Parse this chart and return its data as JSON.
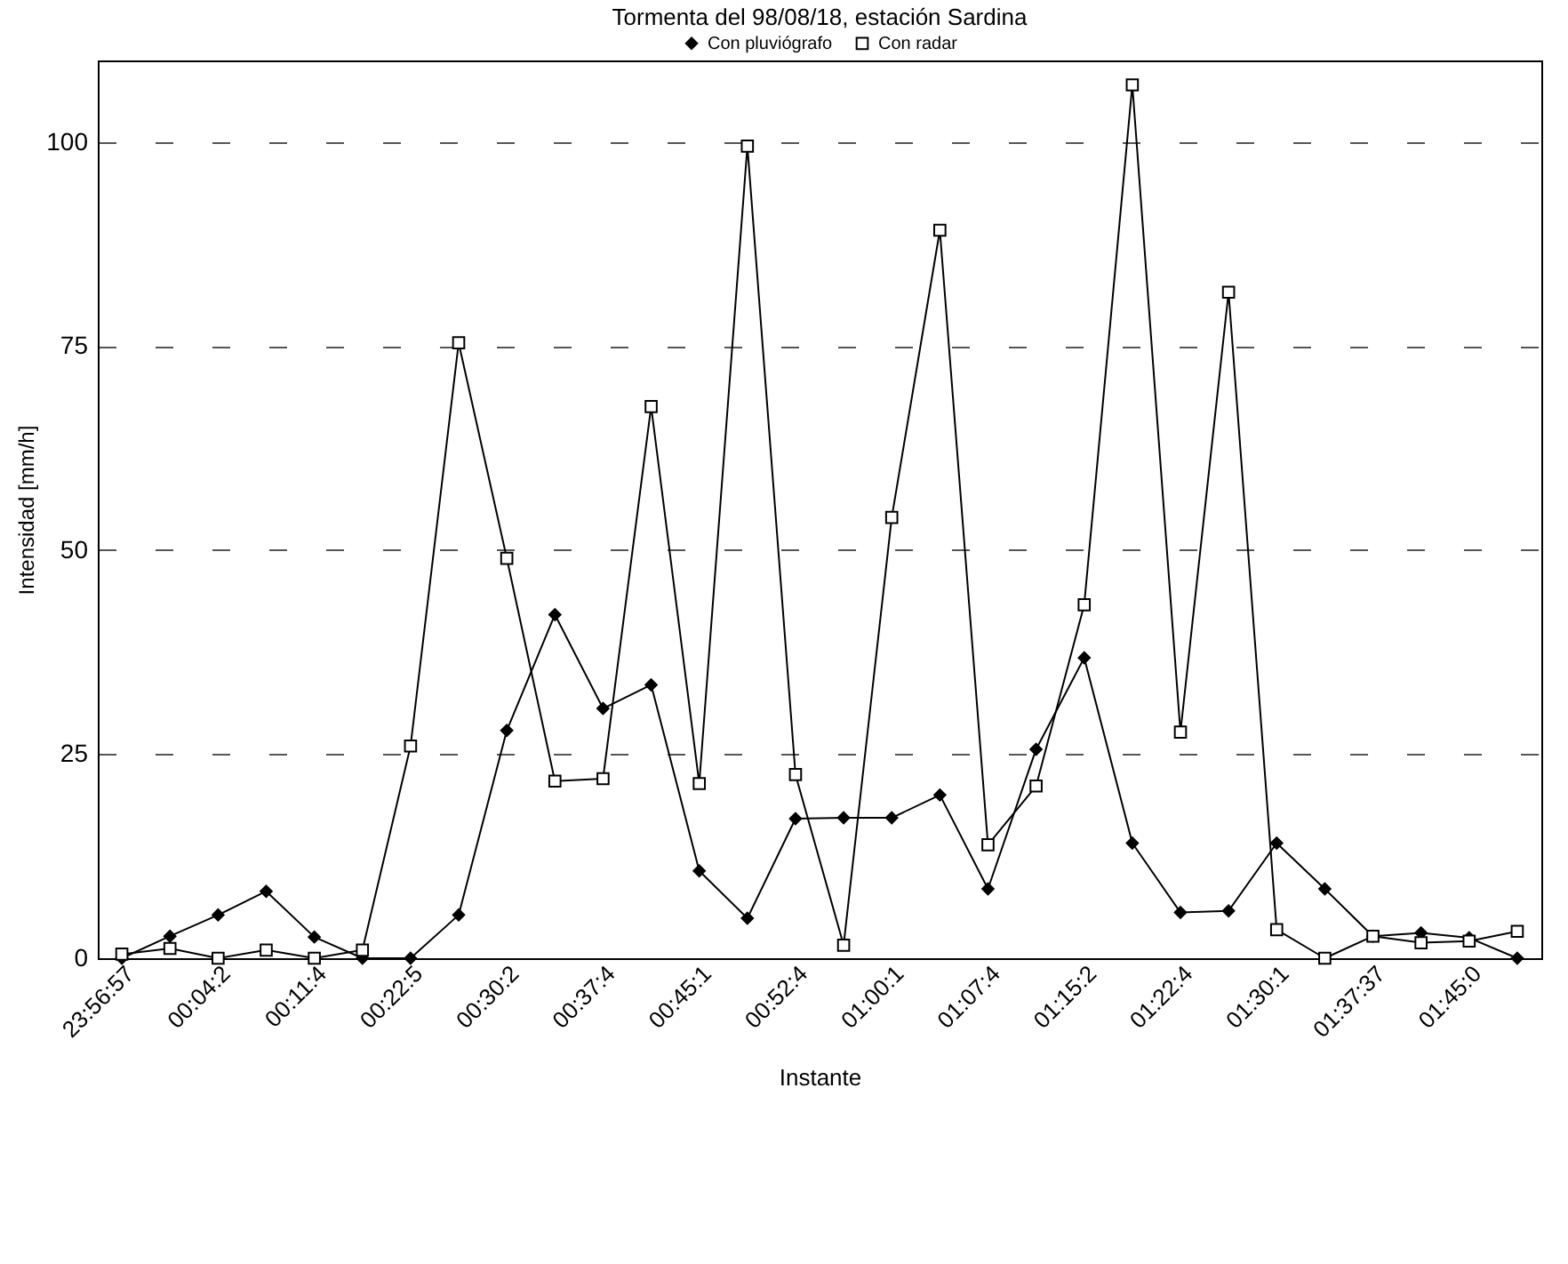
{
  "chart_data": {
    "type": "line",
    "title": "Tormenta del 98/08/18, estación Sardina",
    "xlabel": "Instante",
    "ylabel": "Intensidad  [mm/h]",
    "categories": [
      "23:56:57",
      null,
      "00:04:2",
      null,
      "00:11:4",
      null,
      "00:22:5",
      null,
      "00:30:2",
      null,
      "00:37:4",
      null,
      "00:45:1",
      null,
      "00:52:4",
      null,
      "01:00:1",
      null,
      "01:07:4",
      null,
      "01:15:2",
      null,
      "01:22:4",
      null,
      "01:30:1",
      null,
      "01:37:37",
      null,
      "01:45:0",
      null
    ],
    "series": [
      {
        "name": "Con pluviógrafo",
        "color": "#000000",
        "marker": "diamond",
        "values": [
          0,
          2.7,
          5.3,
          8.2,
          2.6,
          0,
          0,
          5.3,
          27.9,
          42.1,
          30.6,
          33.5,
          10.7,
          4.9,
          17.1,
          17.2,
          17.2,
          20,
          8.5,
          25.6,
          36.8,
          14.1,
          5.6,
          5.8,
          14.1,
          8.5,
          2.7,
          3.1,
          2.5,
          0
        ]
      },
      {
        "name": "Con radar",
        "color": "#000000",
        "marker": "square",
        "values": [
          0.5,
          1.2,
          0,
          1,
          0,
          1,
          26,
          75.4,
          49,
          21.7,
          22,
          67.6,
          21.4,
          99.5,
          22.5,
          1.6,
          54,
          89.2,
          13.9,
          21.1,
          43.3,
          107,
          27.7,
          81.6,
          3.5,
          0,
          2.7,
          1.9,
          2.1,
          3.3
        ]
      }
    ],
    "ylim": [
      0,
      110
    ],
    "yticks": [
      0,
      25,
      50,
      75,
      100
    ],
    "grid": "y",
    "legend": "top",
    "line_style": "solid"
  }
}
